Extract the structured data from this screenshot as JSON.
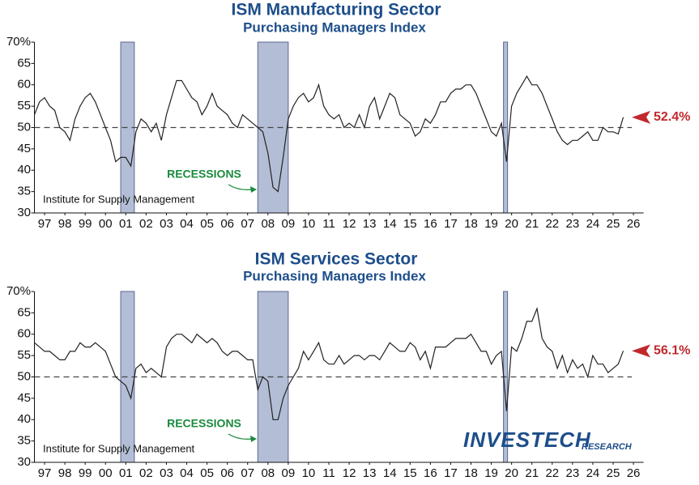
{
  "chart_data": [
    {
      "type": "line",
      "title": "ISM Manufacturing Sector",
      "subtitle": "Purchasing Managers Index",
      "source": "Institute for Supply Management",
      "recession_label": "RECESSIONS",
      "color": "#222222",
      "recession_color": "#b3bed6",
      "reference_line": 50,
      "latest_label": "52.4%",
      "recessions": [
        [
          2001.25,
          2001.92
        ],
        [
          2008.0,
          2009.5
        ],
        [
          2020.1,
          2020.3
        ]
      ],
      "x": [
        1997,
        1997.25,
        1997.5,
        1997.75,
        1998,
        1998.25,
        1998.5,
        1998.75,
        1999,
        1999.25,
        1999.5,
        1999.75,
        2000,
        2000.25,
        2000.5,
        2000.75,
        2001,
        2001.25,
        2001.5,
        2001.75,
        2002,
        2002.25,
        2002.5,
        2002.75,
        2003,
        2003.25,
        2003.5,
        2003.75,
        2004,
        2004.25,
        2004.5,
        2004.75,
        2005,
        2005.25,
        2005.5,
        2005.75,
        2006,
        2006.25,
        2006.5,
        2006.75,
        2007,
        2007.25,
        2007.5,
        2007.75,
        2008,
        2008.25,
        2008.5,
        2008.75,
        2009,
        2009.25,
        2009.5,
        2009.75,
        2010,
        2010.25,
        2010.5,
        2010.75,
        2011,
        2011.25,
        2011.5,
        2011.75,
        2012,
        2012.25,
        2012.5,
        2012.75,
        2013,
        2013.25,
        2013.5,
        2013.75,
        2014,
        2014.25,
        2014.5,
        2014.75,
        2015,
        2015.25,
        2015.5,
        2015.75,
        2016,
        2016.25,
        2016.5,
        2016.75,
        2017,
        2017.25,
        2017.5,
        2017.75,
        2018,
        2018.25,
        2018.5,
        2018.75,
        2019,
        2019.25,
        2019.5,
        2019.75,
        2020,
        2020.25,
        2020.5,
        2020.75,
        2021,
        2021.25,
        2021.5,
        2021.75,
        2022,
        2022.25,
        2022.5,
        2022.75,
        2023,
        2023.25,
        2023.5,
        2023.75,
        2024,
        2024.25,
        2024.5,
        2024.75,
        2025,
        2025.25,
        2025.5,
        2025.75,
        2026
      ],
      "values": [
        53,
        56,
        57,
        55,
        54,
        50,
        49,
        47,
        52,
        55,
        57,
        58,
        56,
        53,
        50,
        47,
        42,
        43,
        43,
        41,
        49,
        52,
        51,
        49,
        51,
        47,
        53,
        57,
        61,
        61,
        59,
        57,
        56,
        53,
        55,
        58,
        55,
        54,
        53,
        51,
        50,
        53,
        52,
        51,
        50,
        49,
        44,
        36,
        35,
        43,
        52,
        55,
        57,
        58,
        56,
        57,
        60,
        55,
        53,
        52,
        53,
        50,
        51,
        50,
        53,
        50,
        55,
        57,
        52,
        55,
        58,
        57,
        53,
        52,
        51,
        48,
        49,
        52,
        51,
        53,
        56,
        56,
        58,
        59,
        59,
        60,
        60,
        58,
        55,
        52,
        49,
        48,
        51,
        42,
        55,
        58,
        60,
        62,
        60,
        60,
        58,
        55,
        52,
        49,
        47,
        46,
        47,
        47,
        48,
        49,
        47,
        47,
        50,
        49,
        49,
        48.5,
        52.4
      ],
      "xlim": [
        1997,
        2027
      ],
      "ylim": [
        30,
        70
      ],
      "xticks": [
        {
          "value": 1997.5,
          "label": "97"
        },
        {
          "value": 1998.5,
          "label": "98"
        },
        {
          "value": 1999.5,
          "label": "99"
        },
        {
          "value": 2000.5,
          "label": "00"
        },
        {
          "value": 2001.5,
          "label": "01"
        },
        {
          "value": 2002.5,
          "label": "02"
        },
        {
          "value": 2003.5,
          "label": "03"
        },
        {
          "value": 2004.5,
          "label": "04"
        },
        {
          "value": 2005.5,
          "label": "05"
        },
        {
          "value": 2006.5,
          "label": "06"
        },
        {
          "value": 2007.5,
          "label": "07"
        },
        {
          "value": 2008.5,
          "label": "08"
        },
        {
          "value": 2009.5,
          "label": "09"
        },
        {
          "value": 2010.5,
          "label": "10"
        },
        {
          "value": 2011.5,
          "label": "11"
        },
        {
          "value": 2012.5,
          "label": "12"
        },
        {
          "value": 2013.5,
          "label": "13"
        },
        {
          "value": 2014.5,
          "label": "14"
        },
        {
          "value": 2015.5,
          "label": "15"
        },
        {
          "value": 2016.5,
          "label": "16"
        },
        {
          "value": 2017.5,
          "label": "17"
        },
        {
          "value": 2018.5,
          "label": "18"
        },
        {
          "value": 2019.5,
          "label": "19"
        },
        {
          "value": 2020.5,
          "label": "20"
        },
        {
          "value": 2021.5,
          "label": "21"
        },
        {
          "value": 2022.5,
          "label": "22"
        },
        {
          "value": 2023.5,
          "label": "23"
        },
        {
          "value": 2024.5,
          "label": "24"
        },
        {
          "value": 2025.5,
          "label": "25"
        },
        {
          "value": 2026.5,
          "label": "26"
        }
      ],
      "yticks": [
        30,
        35,
        40,
        45,
        50,
        55,
        60,
        65,
        {
          "value": 70,
          "label": "70%"
        }
      ]
    },
    {
      "type": "line",
      "title": "ISM Services Sector",
      "subtitle": "Purchasing Managers Index",
      "source": "Institute for Supply Management",
      "recession_label": "RECESSIONS",
      "color": "#222222",
      "recession_color": "#b3bed6",
      "reference_line": 50,
      "latest_label": "56.1%",
      "recessions": [
        [
          2001.25,
          2001.92
        ],
        [
          2008.0,
          2009.5
        ],
        [
          2020.1,
          2020.3
        ]
      ],
      "x": [
        1997,
        1997.25,
        1997.5,
        1997.75,
        1998,
        1998.25,
        1998.5,
        1998.75,
        1999,
        1999.25,
        1999.5,
        1999.75,
        2000,
        2000.25,
        2000.5,
        2000.75,
        2001,
        2001.25,
        2001.5,
        2001.75,
        2002,
        2002.25,
        2002.5,
        2002.75,
        2003,
        2003.25,
        2003.5,
        2003.75,
        2004,
        2004.25,
        2004.5,
        2004.75,
        2005,
        2005.25,
        2005.5,
        2005.75,
        2006,
        2006.25,
        2006.5,
        2006.75,
        2007,
        2007.25,
        2007.5,
        2007.75,
        2008,
        2008.25,
        2008.5,
        2008.75,
        2009,
        2009.25,
        2009.5,
        2009.75,
        2010,
        2010.25,
        2010.5,
        2010.75,
        2011,
        2011.25,
        2011.5,
        2011.75,
        2012,
        2012.25,
        2012.5,
        2012.75,
        2013,
        2013.25,
        2013.5,
        2013.75,
        2014,
        2014.25,
        2014.5,
        2014.75,
        2015,
        2015.25,
        2015.5,
        2015.75,
        2016,
        2016.25,
        2016.5,
        2016.75,
        2017,
        2017.25,
        2017.5,
        2017.75,
        2018,
        2018.25,
        2018.5,
        2018.75,
        2019,
        2019.25,
        2019.5,
        2019.75,
        2020,
        2020.25,
        2020.5,
        2020.75,
        2021,
        2021.25,
        2021.5,
        2021.75,
        2022,
        2022.25,
        2022.5,
        2022.75,
        2023,
        2023.25,
        2023.5,
        2023.75,
        2024,
        2024.25,
        2024.5,
        2024.75,
        2025,
        2025.25,
        2025.5,
        2025.75,
        2026
      ],
      "values": [
        58,
        57,
        56,
        56,
        55,
        54,
        54,
        56,
        56,
        58,
        57,
        57,
        58,
        57,
        56,
        53,
        50,
        49,
        48,
        45,
        52,
        53,
        51,
        52,
        51,
        50,
        57,
        59,
        60,
        60,
        59,
        58,
        60,
        59,
        58,
        59,
        58,
        56,
        55,
        56,
        56,
        55,
        54,
        54,
        47,
        50,
        49,
        40,
        40,
        45,
        48,
        50,
        52,
        56,
        54,
        56,
        58,
        54,
        53,
        53,
        55,
        53,
        54,
        55,
        55,
        54,
        55,
        55,
        54,
        56,
        58,
        57,
        56,
        56,
        58,
        57,
        54,
        56,
        52,
        57,
        57,
        57,
        58,
        59,
        59,
        59,
        60,
        58,
        56,
        56,
        53,
        55,
        56,
        42,
        57,
        56,
        59,
        63,
        63,
        66,
        59,
        57,
        56,
        52,
        55,
        51,
        54,
        52,
        53,
        50,
        55,
        53,
        53,
        51,
        52,
        53,
        56.1
      ],
      "xlim": [
        1997,
        2027
      ],
      "ylim": [
        30,
        70
      ],
      "xticks": [
        {
          "value": 1997.5,
          "label": "97"
        },
        {
          "value": 1998.5,
          "label": "98"
        },
        {
          "value": 1999.5,
          "label": "99"
        },
        {
          "value": 2000.5,
          "label": "00"
        },
        {
          "value": 2001.5,
          "label": "01"
        },
        {
          "value": 2002.5,
          "label": "02"
        },
        {
          "value": 2003.5,
          "label": "03"
        },
        {
          "value": 2004.5,
          "label": "04"
        },
        {
          "value": 2005.5,
          "label": "05"
        },
        {
          "value": 2006.5,
          "label": "06"
        },
        {
          "value": 2007.5,
          "label": "07"
        },
        {
          "value": 2008.5,
          "label": "08"
        },
        {
          "value": 2009.5,
          "label": "09"
        },
        {
          "value": 2010.5,
          "label": "10"
        },
        {
          "value": 2011.5,
          "label": "11"
        },
        {
          "value": 2012.5,
          "label": "12"
        },
        {
          "value": 2013.5,
          "label": "13"
        },
        {
          "value": 2014.5,
          "label": "14"
        },
        {
          "value": 2015.5,
          "label": "15"
        },
        {
          "value": 2016.5,
          "label": "16"
        },
        {
          "value": 2017.5,
          "label": "17"
        },
        {
          "value": 2018.5,
          "label": "18"
        },
        {
          "value": 2019.5,
          "label": "19"
        },
        {
          "value": 2020.5,
          "label": "20"
        },
        {
          "value": 2021.5,
          "label": "21"
        },
        {
          "value": 2022.5,
          "label": "22"
        },
        {
          "value": 2023.5,
          "label": "23"
        },
        {
          "value": 2024.5,
          "label": "24"
        },
        {
          "value": 2025.5,
          "label": "25"
        },
        {
          "value": 2026.5,
          "label": "26"
        }
      ],
      "yticks": [
        30,
        35,
        40,
        45,
        50,
        55,
        60,
        65,
        {
          "value": 70,
          "label": "70%"
        }
      ]
    }
  ],
  "logo": {
    "name": "INVESTECH",
    "tagline": "RESEARCH"
  }
}
